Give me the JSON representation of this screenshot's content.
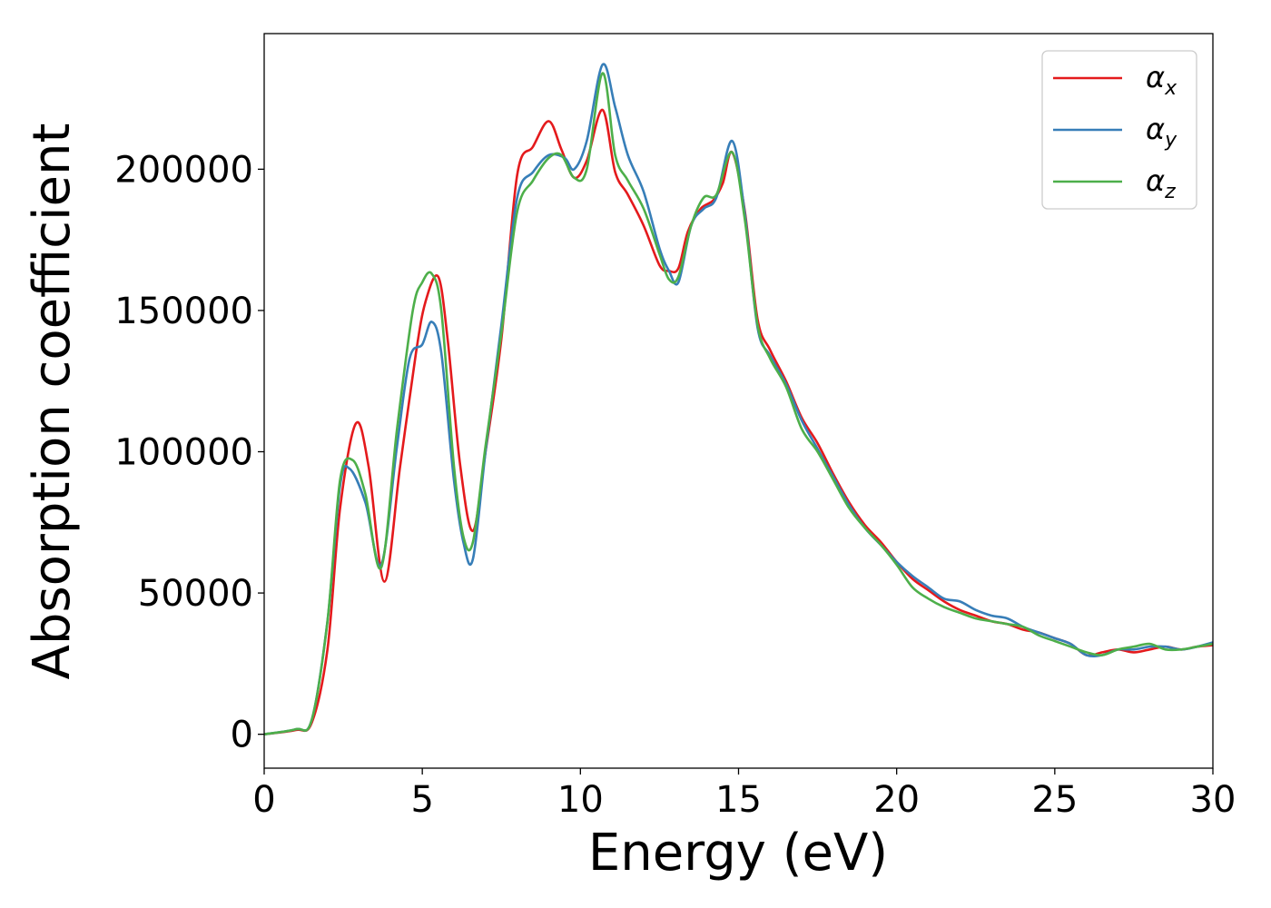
{
  "chart_data": {
    "type": "line",
    "xlabel": "Energy (eV)",
    "ylabel": "Absorption coefficient",
    "xlim": [
      0,
      30
    ],
    "ylim": [
      -12000,
      248000
    ],
    "xticks": [
      0,
      5,
      10,
      15,
      20,
      25,
      30
    ],
    "yticks": [
      0,
      50000,
      100000,
      150000,
      200000
    ],
    "grid": false,
    "legend_position": "top-right",
    "series": [
      {
        "name": "α",
        "subscript": "x",
        "color": "#e41a1c",
        "x": [
          0,
          1,
          1.5,
          2,
          2.4,
          2.9,
          3.3,
          3.8,
          4.3,
          4.8,
          5.1,
          5.5,
          5.8,
          6.2,
          6.6,
          7,
          7.5,
          8,
          8.5,
          9,
          9.4,
          9.8,
          10.2,
          10.7,
          11.1,
          11.5,
          12,
          12.5,
          12.8,
          13.1,
          13.4,
          13.8,
          14.2,
          14.5,
          14.8,
          15.2,
          15.6,
          16,
          16.5,
          17,
          17.5,
          18,
          18.5,
          19,
          19.5,
          20,
          20.5,
          21,
          21.5,
          22,
          22.5,
          23,
          23.5,
          24,
          24.5,
          25,
          25.5,
          26,
          26.5,
          27,
          27.5,
          28,
          28.5,
          29,
          29.5,
          30
        ],
        "values": [
          0,
          1500,
          4000,
          30000,
          80000,
          110000,
          95000,
          54000,
          95000,
          135000,
          153000,
          162000,
          140000,
          95000,
          72000,
          100000,
          140000,
          198000,
          208000,
          217000,
          207000,
          197000,
          203000,
          221000,
          199000,
          191000,
          180000,
          166000,
          164000,
          165000,
          178000,
          186000,
          189000,
          195000,
          206000,
          185000,
          147000,
          136000,
          125000,
          112000,
          103000,
          92000,
          82000,
          74000,
          68000,
          61000,
          55000,
          51000,
          47000,
          44000,
          42000,
          40000,
          39000,
          37000,
          36000,
          34000,
          32000,
          28000,
          29000,
          30000,
          29000,
          30000,
          31000,
          30000,
          31000,
          31500
        ]
      },
      {
        "name": "α",
        "subscript": "y",
        "color": "#377eb8",
        "x": [
          0,
          1,
          1.5,
          2,
          2.4,
          2.7,
          3.2,
          3.7,
          4.2,
          4.6,
          5,
          5.3,
          5.6,
          6,
          6.3,
          6.6,
          7,
          7.5,
          8,
          8.5,
          9,
          9.5,
          9.8,
          10.2,
          10.7,
          11.1,
          11.5,
          12,
          12.5,
          12.8,
          13.1,
          13.5,
          13.9,
          14.3,
          14.8,
          15.2,
          15.6,
          16,
          16.5,
          17,
          17.5,
          18,
          18.5,
          19,
          19.5,
          20,
          20.5,
          21,
          21.5,
          22,
          22.5,
          23,
          23.5,
          24,
          24.5,
          25,
          25.5,
          26,
          26.5,
          27,
          27.5,
          28,
          28.5,
          29,
          29.5,
          30
        ],
        "values": [
          0,
          1800,
          5000,
          40000,
          88000,
          94000,
          82000,
          60000,
          102000,
          133000,
          138000,
          146000,
          135000,
          90000,
          68000,
          62000,
          100000,
          145000,
          190000,
          199000,
          205000,
          204000,
          200000,
          210000,
          237000,
          222000,
          205000,
          192000,
          172000,
          164000,
          160000,
          180000,
          186000,
          190000,
          210000,
          184000,
          144000,
          134000,
          124000,
          111000,
          101000,
          91000,
          81000,
          73000,
          67000,
          61000,
          56000,
          52000,
          48000,
          47000,
          44000,
          42000,
          41000,
          38000,
          36000,
          34000,
          32000,
          28000,
          28000,
          30000,
          30000,
          31000,
          31000,
          30000,
          31000,
          32500
        ]
      },
      {
        "name": "α",
        "subscript": "z",
        "color": "#4daf4a",
        "x": [
          0,
          1,
          1.5,
          2,
          2.4,
          2.8,
          3.2,
          3.7,
          4.2,
          4.7,
          5,
          5.3,
          5.6,
          6,
          6.3,
          6.6,
          7,
          7.5,
          8,
          8.5,
          9,
          9.4,
          9.8,
          10.2,
          10.7,
          11.1,
          11.5,
          12,
          12.5,
          12.8,
          13.1,
          13.5,
          13.9,
          14.3,
          14.8,
          15.2,
          15.6,
          16,
          16.5,
          17,
          17.5,
          18,
          18.5,
          19,
          19.5,
          20,
          20.5,
          21,
          21.5,
          22,
          22.5,
          23,
          23.5,
          24,
          24.5,
          25,
          25.5,
          26,
          26.5,
          27,
          27.5,
          28,
          28.5,
          29,
          29.5,
          30
        ],
        "values": [
          0,
          1800,
          5000,
          40000,
          90000,
          97000,
          85000,
          59000,
          108000,
          150000,
          160000,
          163000,
          150000,
          95000,
          70000,
          68000,
          102000,
          142000,
          185000,
          196000,
          204000,
          205000,
          197000,
          200000,
          234000,
          205000,
          196000,
          186000,
          170000,
          161000,
          162000,
          180000,
          190000,
          191000,
          206000,
          182000,
          145000,
          133000,
          123000,
          108000,
          100000,
          90000,
          80000,
          73000,
          67000,
          60000,
          52000,
          48000,
          45000,
          43000,
          41000,
          40000,
          39000,
          38000,
          35000,
          33000,
          31000,
          29000,
          28000,
          30000,
          31000,
          32000,
          30000,
          30000,
          31000,
          32000
        ]
      }
    ]
  }
}
